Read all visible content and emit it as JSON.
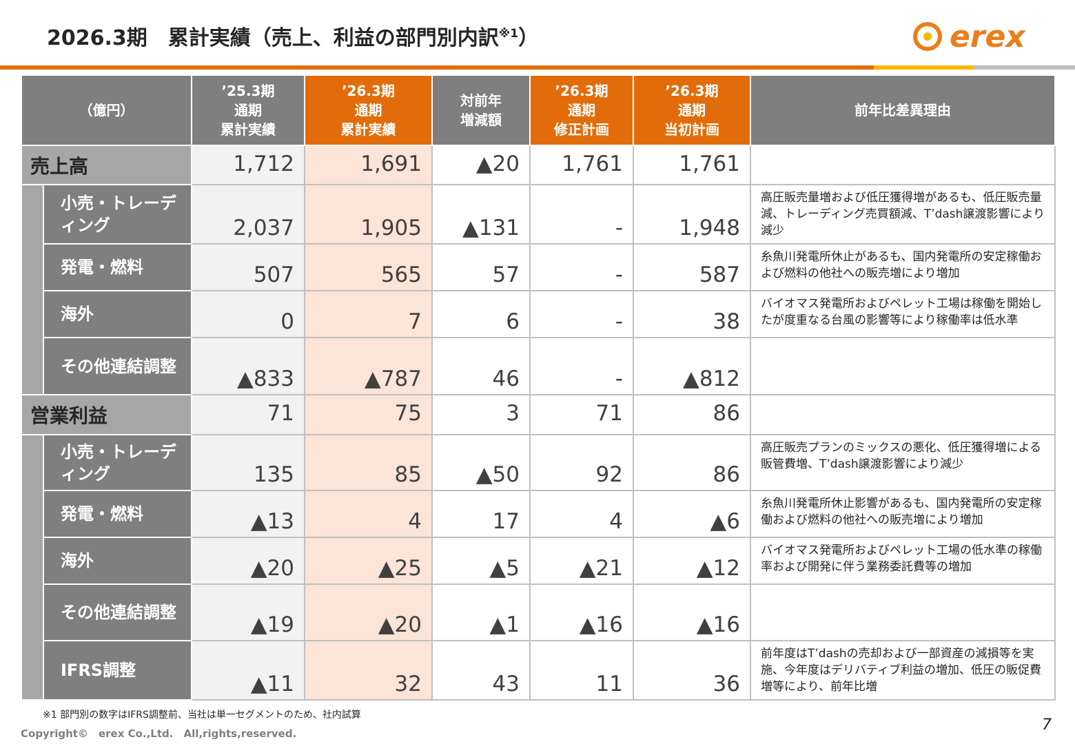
{
  "header": {
    "title": "2026.3期　累計実績（売上、利益の部門別内訳",
    "title_note": "※1",
    "title_end": "）",
    "logo": "erex"
  },
  "table": {
    "columns": [
      "（億円）",
      "’25.3期\n通期\n累計実績",
      "’26.3期\n通期\n累計実績",
      "対前年\n増減額",
      "’26.3期\n通期\n修正計画",
      "’26.3期\n通期\n当初計画",
      "前年比差異理由"
    ],
    "sections": [
      {
        "label": "売上高",
        "values": [
          "1,712",
          "1,691",
          "▲20",
          "1,761",
          "1,761"
        ],
        "segments": [
          {
            "label": "小売・トレーディング",
            "values": [
              "2,037",
              "1,905",
              "▲131",
              "-",
              "1,948"
            ],
            "reason": "高圧販売量増および低圧獲得増があるも、低圧販売量減、トレーディング売買額減、T’dash譲渡影響により減少"
          },
          {
            "label": "発電・燃料",
            "values": [
              "507",
              "565",
              "57",
              "-",
              "587"
            ],
            "reason": "糸魚川発電所休止があるも、国内発電所の安定稼働および燃料の他社への販売増により増加"
          },
          {
            "label": "海外",
            "values": [
              "0",
              "7",
              "6",
              "-",
              "38"
            ],
            "reason": "バイオマス発電所およびペレット工場は稼働を開始したが度重なる台風の影響等により稼働率は低水準"
          },
          {
            "label": "その他連結調整",
            "values": [
              "▲833",
              "▲787",
              "46",
              "-",
              "▲812"
            ]
          }
        ]
      },
      {
        "label": "営業利益",
        "values": [
          "71",
          "75",
          "3",
          "71",
          "86"
        ],
        "segments": [
          {
            "label": "小売・トレーディング",
            "values": [
              "135",
              "85",
              "▲50",
              "92",
              "86"
            ],
            "reason": "高圧販売プランのミックスの悪化、低圧獲得増による販管費増、T’dash譲渡影響により減少"
          },
          {
            "label": "発電・燃料",
            "values": [
              "▲13",
              "4",
              "17",
              "4",
              "▲6"
            ],
            "reason": "糸魚川発電所休止影響があるも、国内発電所の安定稼働および燃料の他社への販売増により増加"
          },
          {
            "label": "海外",
            "values": [
              "▲20",
              "▲25",
              "▲5",
              "▲21",
              "▲12"
            ],
            "reason": "バイオマス発電所およびペレット工場の低水準の稼働率および開発に伴う業務委託費等の増加"
          },
          {
            "label": "その他連結調整",
            "values": [
              "▲19",
              "▲20",
              "▲1",
              "▲16",
              "▲16"
            ]
          },
          {
            "label": "IFRS調整",
            "values": [
              "▲11",
              "32",
              "43",
              "11",
              "36"
            ],
            "reason": "前年度はT’dashの売却および一部資産の減損等を実施、今年度はデリバティブ利益の増加、低圧の販促費増等により、前年比増"
          }
        ]
      }
    ]
  },
  "footnote": "※1  部門別の数字はIFRS調整前、当社は単一セグメントのため、社内試算",
  "copyright": "Copyright©　erex Co.,Ltd.　All,rights,reserved.",
  "page_number": "7"
}
